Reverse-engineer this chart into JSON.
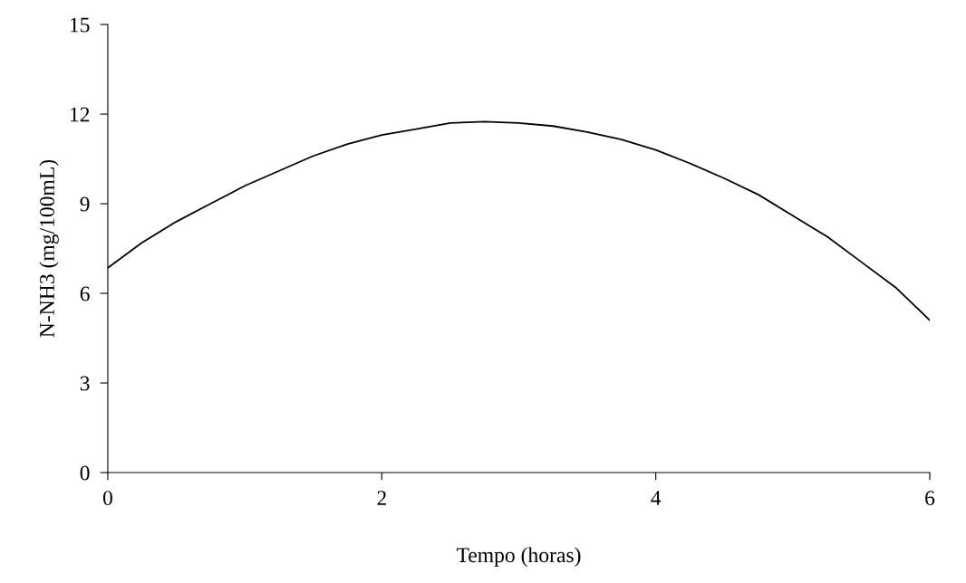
{
  "chart_data": {
    "type": "line",
    "xlabel": "Tempo (horas)",
    "ylabel": "N-NH3 (mg/100mL)",
    "x": [
      0,
      0.25,
      0.5,
      0.75,
      1,
      1.25,
      1.5,
      1.75,
      2,
      2.25,
      2.5,
      2.75,
      3,
      3.25,
      3.5,
      3.75,
      4,
      4.25,
      4.5,
      4.75,
      5,
      5.25,
      5.5,
      5.75,
      6
    ],
    "series": [
      {
        "color": "#000000",
        "values": [
          6.85,
          7.7,
          8.4,
          9.0,
          9.6,
          10.1,
          10.6,
          11.0,
          11.3,
          11.5,
          11.7,
          11.75,
          11.7,
          11.6,
          11.4,
          11.15,
          10.8,
          10.35,
          9.85,
          9.3,
          8.6,
          7.9,
          7.05,
          6.2,
          5.1
        ]
      }
    ],
    "xlim": [
      0,
      6
    ],
    "xticks": [
      0,
      2,
      4,
      6
    ],
    "ylim": [
      0,
      15
    ],
    "yticks": [
      0,
      3,
      6,
      9,
      12,
      15
    ],
    "grid": false,
    "legend": false,
    "marker": "none",
    "line_style": "solid"
  }
}
